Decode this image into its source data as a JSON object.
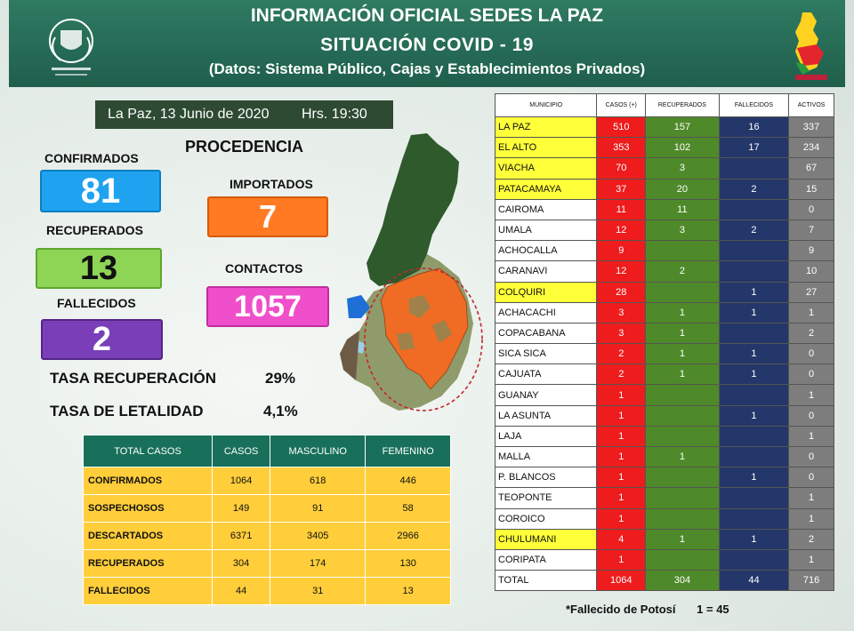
{
  "header": {
    "title": "INFORMACIÓN OFICIAL SEDES LA PAZ",
    "subtitle": "SITUACIÓN  COVID - 19",
    "source": "(Datos: Sistema Público, Cajas y Establecimientos Privados)"
  },
  "date": {
    "text": "La Paz, 13  Junio de 2020",
    "time": "Hrs. 19:30"
  },
  "stats": {
    "confirmados_label": "CONFIRMADOS",
    "confirmados_value": "81",
    "recuperados_label": "RECUPERADOS",
    "recuperados_value": "13",
    "fallecidos_label": "FALLECIDOS",
    "fallecidos_value": "2"
  },
  "procedencia": {
    "title": "PROCEDENCIA",
    "importados_label": "IMPORTADOS",
    "importados_value": "7",
    "contactos_label": "CONTACTOS",
    "contactos_value": "1057"
  },
  "rates": {
    "recuperacion_label": "TASA RECUPERACIÓN",
    "recuperacion_value": "29%",
    "letalidad_label": "TASA  DE LETALIDAD",
    "letalidad_value": "4,1%"
  },
  "summary": {
    "headers": [
      "TOTAL CASOS",
      "CASOS",
      "MASCULINO",
      "FEMENINO"
    ],
    "rows": [
      {
        "label": "CONFIRMADOS",
        "casos": "1064",
        "masculino": "618",
        "femenino": "446"
      },
      {
        "label": "SOSPECHOSOS",
        "casos": "149",
        "masculino": "91",
        "femenino": "58"
      },
      {
        "label": "DESCARTADOS",
        "casos": "6371",
        "masculino": "3405",
        "femenino": "2966"
      },
      {
        "label": "RECUPERADOS",
        "casos": "304",
        "masculino": "174",
        "femenino": "130"
      },
      {
        "label": "FALLECIDOS",
        "casos": "44",
        "masculino": "31",
        "femenino": "13"
      }
    ]
  },
  "municipios": {
    "headers": [
      "MUNICIPIO",
      "CASOS (+)",
      "RECUPERADOS",
      "FALLECIDOS",
      "ACTIVOS"
    ],
    "rows": [
      {
        "name": "LA PAZ",
        "highlight": true,
        "casos": "510",
        "recuperados": "157",
        "fallecidos": "16",
        "activos": "337"
      },
      {
        "name": "EL ALTO",
        "highlight": true,
        "casos": "353",
        "recuperados": "102",
        "fallecidos": "17",
        "activos": "234"
      },
      {
        "name": "VIACHA",
        "highlight": true,
        "casos": "70",
        "recuperados": "3",
        "fallecidos": "",
        "activos": "67"
      },
      {
        "name": "PATACAMAYA",
        "highlight": true,
        "casos": "37",
        "recuperados": "20",
        "fallecidos": "2",
        "activos": "15"
      },
      {
        "name": "CAIROMA",
        "highlight": false,
        "casos": "11",
        "recuperados": "11",
        "fallecidos": "",
        "activos": "0"
      },
      {
        "name": "UMALA",
        "highlight": false,
        "casos": "12",
        "recuperados": "3",
        "fallecidos": "2",
        "activos": "7"
      },
      {
        "name": "ACHOCALLA",
        "highlight": false,
        "casos": "9",
        "recuperados": "",
        "fallecidos": "",
        "activos": "9"
      },
      {
        "name": "CARANAVI",
        "highlight": false,
        "casos": "12",
        "recuperados": "2",
        "fallecidos": "",
        "activos": "10"
      },
      {
        "name": "COLQUIRI",
        "highlight": true,
        "casos": "28",
        "recuperados": "",
        "fallecidos": "1",
        "activos": "27"
      },
      {
        "name": "ACHACACHI",
        "highlight": false,
        "casos": "3",
        "recuperados": "1",
        "fallecidos": "1",
        "activos": "1"
      },
      {
        "name": "COPACABANA",
        "highlight": false,
        "casos": "3",
        "recuperados": "1",
        "fallecidos": "",
        "activos": "2"
      },
      {
        "name": "SICA SICA",
        "highlight": false,
        "casos": "2",
        "recuperados": "1",
        "fallecidos": "1",
        "activos": "0"
      },
      {
        "name": "CAJUATA",
        "highlight": false,
        "casos": "2",
        "recuperados": "1",
        "fallecidos": "1",
        "activos": "0"
      },
      {
        "name": "GUANAY",
        "highlight": false,
        "casos": "1",
        "recuperados": "",
        "fallecidos": "",
        "activos": "1"
      },
      {
        "name": "LA ASUNTA",
        "highlight": false,
        "casos": "1",
        "recuperados": "",
        "fallecidos": "1",
        "activos": "0"
      },
      {
        "name": "LAJA",
        "highlight": false,
        "casos": "1",
        "recuperados": "",
        "fallecidos": "",
        "activos": "1"
      },
      {
        "name": "MALLA",
        "highlight": false,
        "casos": "1",
        "recuperados": "1",
        "fallecidos": "",
        "activos": "0"
      },
      {
        "name": "P. BLANCOS",
        "highlight": false,
        "casos": "1",
        "recuperados": "",
        "fallecidos": "1",
        "activos": "0"
      },
      {
        "name": "TEOPONTE",
        "highlight": false,
        "casos": "1",
        "recuperados": "",
        "fallecidos": "",
        "activos": "1"
      },
      {
        "name": "COROICO",
        "highlight": false,
        "casos": "1",
        "recuperados": "",
        "fallecidos": "",
        "activos": "1"
      },
      {
        "name": "CHULUMANI",
        "highlight": true,
        "casos": "4",
        "recuperados": "1",
        "fallecidos": "1",
        "activos": "2"
      },
      {
        "name": "CORIPATA",
        "highlight": false,
        "casos": "1",
        "recuperados": "",
        "fallecidos": "",
        "activos": "1"
      }
    ],
    "total": {
      "name": "TOTAL",
      "casos": "1064",
      "recuperados": "304",
      "fallecidos": "44",
      "activos": "716"
    }
  },
  "footnote": {
    "text": "*Fallecido de Potosí",
    "value": "1 = 45"
  },
  "colors": {
    "header": "#1f5f4c",
    "confirmados": "#1fa3f0",
    "recuperados": "#8ed455",
    "fallecidos": "#7a3fb8",
    "importados": "#ff7a22",
    "contactos": "#f04fcb"
  }
}
